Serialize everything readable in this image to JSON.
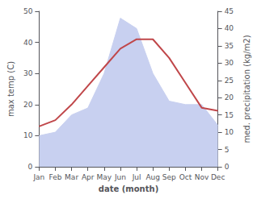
{
  "chart_data": {
    "type": "line",
    "categories": [
      "Jan",
      "Feb",
      "Mar",
      "Apr",
      "May",
      "Jun",
      "Jul",
      "Aug",
      "Sep",
      "Oct",
      "Nov",
      "Dec"
    ],
    "series": [
      {
        "type": "area",
        "color": "#c8d0f0",
        "axis": "y2",
        "values": [
          9,
          10,
          15,
          17,
          27,
          43,
          40,
          27,
          19,
          18,
          18,
          12
        ]
      },
      {
        "type": "line",
        "color": "#c0474a",
        "values": [
          13,
          15,
          20,
          26,
          32,
          38,
          41,
          41,
          35,
          27,
          19,
          18
        ]
      }
    ],
    "xlabel": "date (month)",
    "ylabel": "max temp (C)",
    "y2label": "med. precipitation (kg/m2)",
    "ylim": [
      0,
      50
    ],
    "yticks": [
      0,
      10,
      20,
      30,
      40,
      50
    ],
    "y2lim": [
      0,
      45
    ],
    "y2ticks": [
      0,
      5,
      10,
      15,
      20,
      25,
      30,
      35,
      40,
      45
    ],
    "grid": false
  }
}
